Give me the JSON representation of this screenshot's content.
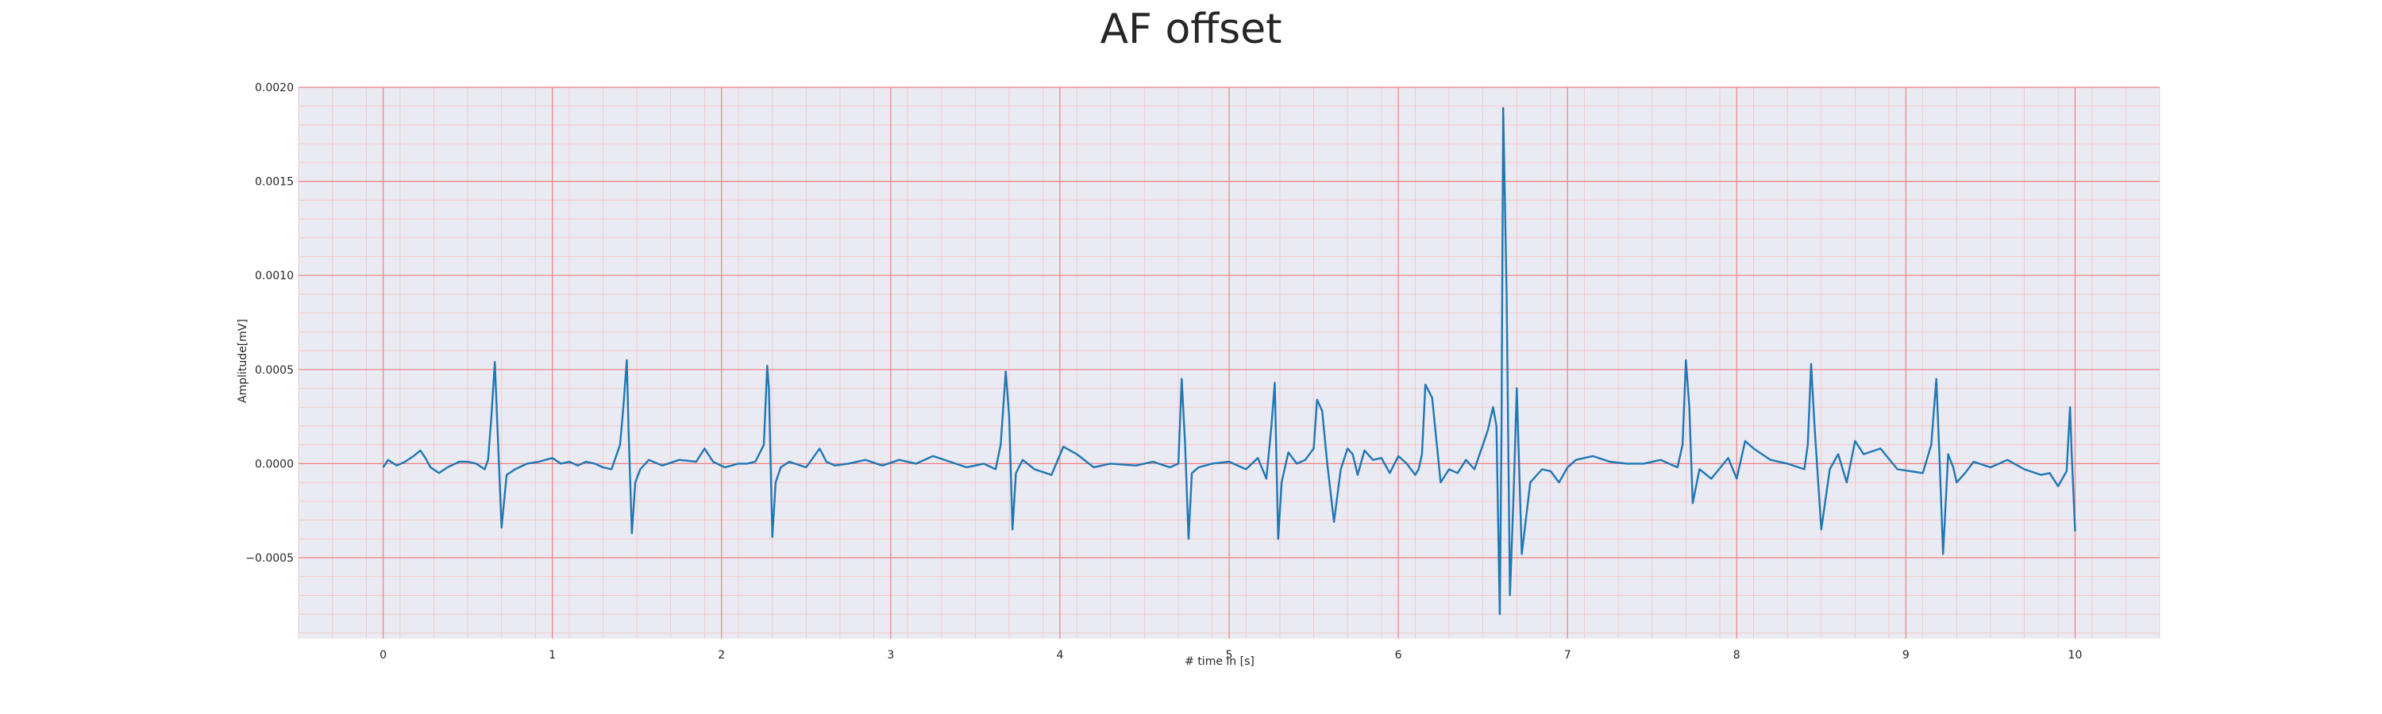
{
  "chart_data": {
    "type": "line",
    "title": "AF offset",
    "xlabel": "# time in [s]",
    "ylabel": "Amplitude[mV]",
    "xlim": [
      -0.5,
      10.5
    ],
    "ylim": [
      -0.00093,
      0.002
    ],
    "xticks": [
      0,
      1,
      2,
      3,
      4,
      5,
      6,
      7,
      8,
      9,
      10
    ],
    "xtick_labels": [
      "0",
      "1",
      "2",
      "3",
      "4",
      "5",
      "6",
      "7",
      "8",
      "9",
      "10"
    ],
    "yticks": [
      -0.0005,
      0.0,
      0.0005,
      0.001,
      0.0015,
      0.002
    ],
    "ytick_labels": [
      "−0.0005",
      "0.0000",
      "0.0005",
      "0.0010",
      "0.0015",
      "0.0020"
    ],
    "grid": true,
    "colors": {
      "line": "#1f77b4",
      "plot_background": "#eaeaf2",
      "major_grid": "#f08080",
      "minor_grid": "#f4c2c2"
    },
    "series": [
      {
        "x": [
          0.0,
          0.03,
          0.08,
          0.13,
          0.18,
          0.22,
          0.25,
          0.28,
          0.33,
          0.38,
          0.45,
          0.5,
          0.55,
          0.6,
          0.62,
          0.64,
          0.66,
          0.68,
          0.7,
          0.73,
          0.78,
          0.85,
          0.92,
          1.0,
          1.05,
          1.1,
          1.15,
          1.2,
          1.25,
          1.3,
          1.35,
          1.4,
          1.42,
          1.44,
          1.45,
          1.47,
          1.49,
          1.52,
          1.57,
          1.65,
          1.75,
          1.85,
          1.9,
          1.95,
          2.02,
          2.1,
          2.15,
          2.2,
          2.25,
          2.27,
          2.28,
          2.3,
          2.32,
          2.35,
          2.4,
          2.5,
          2.58,
          2.62,
          2.67,
          2.75,
          2.85,
          2.95,
          3.05,
          3.15,
          3.25,
          3.35,
          3.45,
          3.55,
          3.62,
          3.65,
          3.68,
          3.7,
          3.72,
          3.74,
          3.78,
          3.85,
          3.95,
          4.02,
          4.1,
          4.2,
          4.3,
          4.45,
          4.55,
          4.65,
          4.7,
          4.72,
          4.74,
          4.76,
          4.78,
          4.82,
          4.9,
          5.0,
          5.1,
          5.17,
          5.22,
          5.25,
          5.27,
          5.29,
          5.31,
          5.35,
          5.4,
          5.45,
          5.5,
          5.52,
          5.55,
          5.58,
          5.62,
          5.66,
          5.7,
          5.73,
          5.76,
          5.8,
          5.85,
          5.9,
          5.95,
          6.0,
          6.05,
          6.1,
          6.12,
          6.14,
          6.16,
          6.2,
          6.25,
          6.3,
          6.35,
          6.4,
          6.45,
          6.5,
          6.53,
          6.56,
          6.58,
          6.59,
          6.6,
          6.61,
          6.62,
          6.64,
          6.66,
          6.68,
          6.7,
          6.73,
          6.78,
          6.85,
          6.9,
          6.95,
          7.0,
          7.05,
          7.15,
          7.25,
          7.35,
          7.45,
          7.55,
          7.65,
          7.68,
          7.7,
          7.72,
          7.74,
          7.78,
          7.85,
          7.95,
          8.0,
          8.05,
          8.1,
          8.2,
          8.3,
          8.4,
          8.42,
          8.44,
          8.46,
          8.5,
          8.55,
          8.6,
          8.65,
          8.7,
          8.75,
          8.85,
          8.95,
          9.1,
          9.15,
          9.18,
          9.2,
          9.22,
          9.25,
          9.28,
          9.3,
          9.35,
          9.4,
          9.5,
          9.6,
          9.7,
          9.8,
          9.85,
          9.9,
          9.95,
          9.97,
          9.98,
          10.0
        ],
        "y": [
          -2e-05,
          2e-05,
          -1e-05,
          1e-05,
          4e-05,
          7e-05,
          3e-05,
          -2e-05,
          -5e-05,
          -2e-05,
          1e-05,
          1e-05,
          0.0,
          -3e-05,
          2e-05,
          0.00025,
          0.00054,
          0.0001,
          -0.00034,
          -6e-05,
          -3e-05,
          0.0,
          1e-05,
          3e-05,
          0.0,
          1e-05,
          -1e-05,
          1e-05,
          0.0,
          -2e-05,
          -3e-05,
          0.0001,
          0.0003,
          0.00055,
          0.0002,
          -0.00037,
          -0.0001,
          -3e-05,
          2e-05,
          -1e-05,
          2e-05,
          1e-05,
          8e-05,
          1e-05,
          -2e-05,
          0.0,
          0.0,
          1e-05,
          0.0001,
          0.00052,
          0.0004,
          -0.00039,
          -0.0001,
          -2e-05,
          1e-05,
          -2e-05,
          8e-05,
          1e-05,
          -1e-05,
          0.0,
          2e-05,
          -1e-05,
          2e-05,
          0.0,
          4e-05,
          1e-05,
          -2e-05,
          0.0,
          -3e-05,
          0.0001,
          0.00049,
          0.00025,
          -0.00035,
          -5e-05,
          2e-05,
          -3e-05,
          -6e-05,
          9e-05,
          5e-05,
          -2e-05,
          0.0,
          -1e-05,
          1e-05,
          -2e-05,
          0.0,
          0.00045,
          0.0001,
          -0.0004,
          -5e-05,
          -2e-05,
          0.0,
          1e-05,
          -3e-05,
          3e-05,
          -8e-05,
          0.0002,
          0.00043,
          -0.0004,
          -0.0001,
          6e-05,
          0.0,
          2e-05,
          8e-05,
          0.00034,
          0.00028,
          0.0,
          -0.00031,
          -3e-05,
          8e-05,
          5e-05,
          -6e-05,
          7e-05,
          2e-05,
          3e-05,
          -5e-05,
          4e-05,
          0.0,
          -6e-05,
          -3e-05,
          5e-05,
          0.00042,
          0.00035,
          -0.0001,
          -3e-05,
          -5e-05,
          2e-05,
          -3e-05,
          0.0001,
          0.00018,
          0.0003,
          0.0002,
          -0.0003,
          -0.0008,
          0.0002,
          0.00189,
          0.0009,
          -0.0007,
          -0.0002,
          0.0004,
          -0.00048,
          -0.0001,
          -3e-05,
          -4e-05,
          -0.0001,
          -2e-05,
          2e-05,
          4e-05,
          1e-05,
          0.0,
          0.0,
          2e-05,
          -2e-05,
          0.0001,
          0.00055,
          0.0003,
          -0.00021,
          -3e-05,
          -8e-05,
          3e-05,
          -8e-05,
          0.00012,
          8e-05,
          2e-05,
          0.0,
          -3e-05,
          0.0001,
          0.00053,
          0.0002,
          -0.00035,
          -3e-05,
          5e-05,
          -0.0001,
          0.00012,
          5e-05,
          8e-05,
          -3e-05,
          -5e-05,
          0.0001,
          0.00045,
          0.0,
          -0.00048,
          5e-05,
          -2e-05,
          -0.0001,
          -5e-05,
          1e-05,
          -2e-05,
          2e-05,
          -3e-05,
          -6e-05,
          -5e-05,
          -0.00012,
          -4e-05,
          0.0003,
          5e-05,
          -0.00036
        ]
      }
    ]
  }
}
